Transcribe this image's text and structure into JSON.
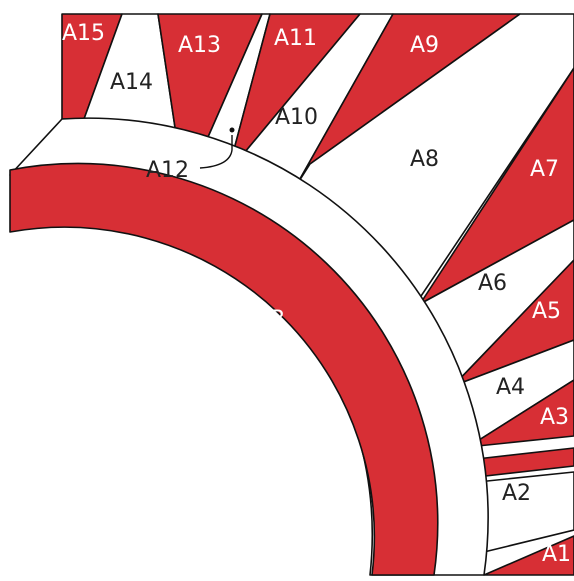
{
  "diagram": {
    "colors": {
      "piece_red": "#d72f35",
      "piece_white": "#ffffff",
      "outline": "#111111"
    },
    "labels": {
      "A1": "A1",
      "A2": "A2",
      "A3": "A3",
      "A4": "A4",
      "A5": "A5",
      "A6": "A6",
      "A7": "A7",
      "A8": "A8",
      "A9": "A9",
      "A10": "A10",
      "A11": "A11",
      "A12": "A12",
      "A13": "A13",
      "A14": "A14",
      "A15": "A15",
      "B": "B"
    }
  }
}
